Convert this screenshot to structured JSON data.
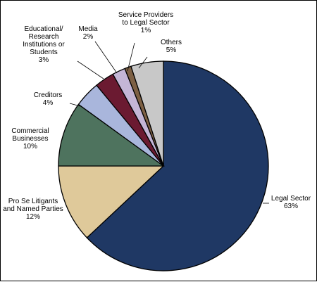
{
  "chart_data": {
    "type": "pie",
    "title": "",
    "slices": [
      {
        "name": "Legal Sector",
        "label_lines": [
          "Legal Sector"
        ],
        "value": 63,
        "value_label": "63%",
        "color": "#1f3864"
      },
      {
        "name": "Pro Se Litigants and Named Parties",
        "label_lines": [
          "Pro Se Litigants",
          "and Named Parties"
        ],
        "value": 12,
        "value_label": "12%",
        "color": "#dfc99a"
      },
      {
        "name": "Commercial Businesses",
        "label_lines": [
          "Commercial",
          "Businesses"
        ],
        "value": 10,
        "value_label": "10%",
        "color": "#4e735e"
      },
      {
        "name": "Creditors",
        "label_lines": [
          "Creditors"
        ],
        "value": 4,
        "value_label": "4%",
        "color": "#a9b6dc"
      },
      {
        "name": "Educational/Research Institutions or Students",
        "label_lines": [
          "Educational/",
          "Research",
          "Institutions or",
          "Students"
        ],
        "value": 3,
        "value_label": "3%",
        "color": "#6b1a31"
      },
      {
        "name": "Media",
        "label_lines": [
          "Media"
        ],
        "value": 2,
        "value_label": "2%",
        "color": "#c4b6d6"
      },
      {
        "name": "Service Providers to Legal Sector",
        "label_lines": [
          "Service Providers",
          "to Legal Sector"
        ],
        "value": 1,
        "value_label": "1%",
        "color": "#7d6044"
      },
      {
        "name": "Others",
        "label_lines": [
          "Others"
        ],
        "value": 5,
        "value_label": "5%",
        "color": "#c8c8c8"
      }
    ],
    "start_angle_deg": 0,
    "direction": "clockwise",
    "legend": "none",
    "data_labels": "outside with leader lines"
  }
}
